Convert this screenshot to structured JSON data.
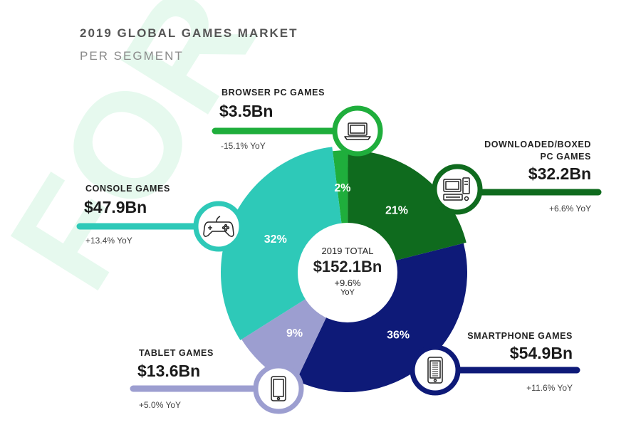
{
  "watermark": "FOR",
  "chart_data": {
    "type": "pie",
    "title": "2019 GLOBAL GAMES MARKET",
    "subtitle": "PER SEGMENT",
    "total": {
      "label": "2019 TOTAL",
      "value": "$152.1Bn",
      "yoy": "+9.6%",
      "yoy_unit": "YoY"
    },
    "slices": [
      {
        "name": "BROWSER PC GAMES",
        "value": 3.5,
        "value_label": "$3.5Bn",
        "percent": 2,
        "percent_label": "2%",
        "yoy": "-15.1% YoY",
        "color": "#1fae3c",
        "icon": "laptop-icon"
      },
      {
        "name": "DOWNLOADED/BOXED PC GAMES",
        "name_line1": "DOWNLOADED/BOXED",
        "name_line2": "PC GAMES",
        "value": 32.2,
        "value_label": "$32.2Bn",
        "percent": 21,
        "percent_label": "21%",
        "yoy": "+6.6% YoY",
        "color": "#0f6b1e",
        "icon": "desktop-pc-icon"
      },
      {
        "name": "SMARTPHONE GAMES",
        "value": 54.9,
        "value_label": "$54.9Bn",
        "percent": 36,
        "percent_label": "36%",
        "yoy": "+11.6% YoY",
        "color": "#0e1a78",
        "icon": "smartphone-icon"
      },
      {
        "name": "TABLET GAMES",
        "value": 13.6,
        "value_label": "$13.6Bn",
        "percent": 9,
        "percent_label": "9%",
        "yoy": "+5.0% YoY",
        "color": "#9c9ed0",
        "icon": "tablet-icon"
      },
      {
        "name": "CONSOLE GAMES",
        "value": 47.9,
        "value_label": "$47.9Bn",
        "percent": 32,
        "percent_label": "32%",
        "yoy": "+13.4% YoY",
        "color": "#2ec9b8",
        "icon": "gamepad-icon"
      }
    ]
  }
}
